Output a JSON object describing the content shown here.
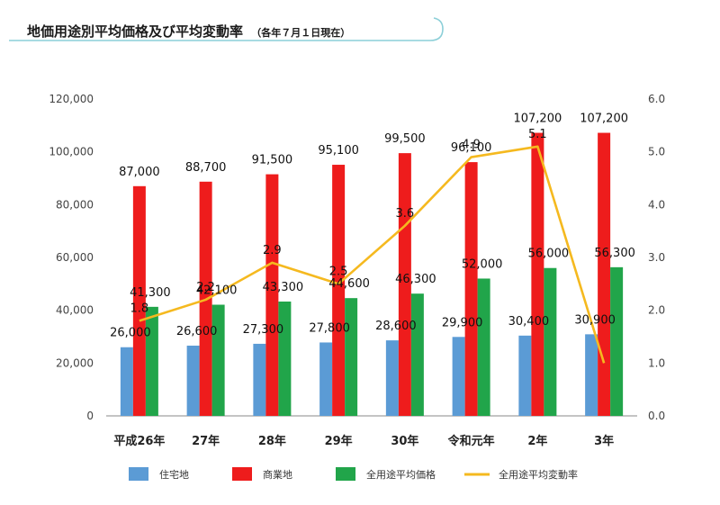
{
  "page": {
    "title": "地価用途別平均価格及び平均変動率",
    "subtitle": "（各年７月１日現在）"
  },
  "colors": {
    "residential": "#5b9bd5",
    "commercial": "#ee1c1c",
    "all_avg_price": "#21a54a",
    "change_rate": "#f5b91f",
    "title_accent": "#8ccfd8"
  },
  "chart_data": {
    "type": "bar",
    "categories": [
      "平成26年",
      "27年",
      "28年",
      "29年",
      "30年",
      "令和元年",
      "2年",
      "3年"
    ],
    "series": [
      {
        "name": "住宅地",
        "type": "bar",
        "axis": "left",
        "values": [
          26000,
          26600,
          27300,
          27800,
          28600,
          29900,
          30400,
          30900
        ],
        "labels": [
          "26,000",
          "26,600",
          "27,300",
          "27,800",
          "28,600",
          "29,900",
          "30,400",
          "30,900"
        ]
      },
      {
        "name": "商業地",
        "type": "bar",
        "axis": "left",
        "values": [
          87000,
          88700,
          91500,
          95100,
          99500,
          96100,
          107200,
          107200
        ],
        "labels": [
          "87,000",
          "88,700",
          "91,500",
          "95,100",
          "99,500",
          "96,100",
          "107,200",
          "107,200"
        ]
      },
      {
        "name": "全用途平均価格",
        "type": "bar",
        "axis": "left",
        "values": [
          41300,
          42100,
          43300,
          44600,
          46300,
          52000,
          56000,
          56300
        ],
        "labels": [
          "41,300",
          "42,100",
          "43,300",
          "44,600",
          "46,300",
          "52,000",
          "56,000",
          "56,300"
        ]
      },
      {
        "name": "全用途平均変動率",
        "type": "line",
        "axis": "right",
        "values": [
          1.8,
          2.2,
          2.9,
          2.5,
          3.6,
          4.9,
          5.1,
          1.0
        ],
        "labels": [
          "1.8",
          "2.2",
          "2.9",
          "2.5",
          "3.6",
          "4.9",
          "5.1",
          ""
        ]
      }
    ],
    "y_left": {
      "ylim": [
        0,
        120000
      ],
      "ticks": [
        "0",
        "20,000",
        "40,000",
        "60,000",
        "80,000",
        "100,000",
        "120,000"
      ]
    },
    "y_right": {
      "ylim": [
        0,
        6
      ],
      "ticks": [
        "0.0",
        "1.0",
        "2.0",
        "3.0",
        "4.0",
        "5.0",
        "6.0"
      ]
    },
    "grid": false,
    "legend": "bottom"
  }
}
